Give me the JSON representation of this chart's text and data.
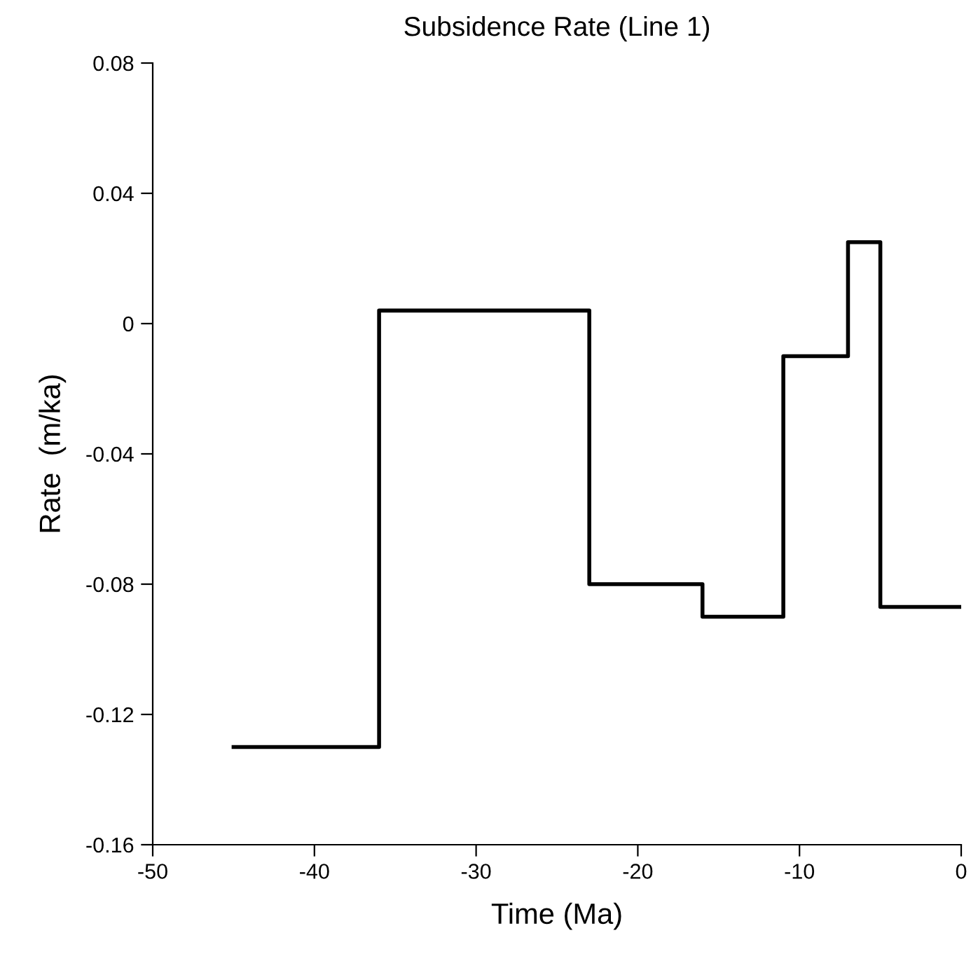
{
  "chart_data": {
    "type": "step",
    "title": "Subsidence Rate (Line 1)",
    "xlabel": "Time (Ma)",
    "ylabel": "Rate  (m/ka)",
    "x": [
      -45,
      -36,
      -23,
      -16,
      -11,
      -7,
      -5,
      0
    ],
    "series": [
      {
        "color": "#000000",
        "values": [
          -0.13,
          0.004,
          -0.08,
          -0.09,
          -0.01,
          0.025,
          -0.087,
          -0.087
        ]
      }
    ],
    "xlim": [
      -50,
      0
    ],
    "ylim": [
      -0.16,
      0.08
    ],
    "xticks": [
      {
        "value": -50,
        "label": "-50"
      },
      {
        "value": -40,
        "label": "-40"
      },
      {
        "value": -30,
        "label": "-30"
      },
      {
        "value": -20,
        "label": "-20"
      },
      {
        "value": -10,
        "label": "-10"
      },
      0
    ],
    "yticks": [
      {
        "value": -0.16,
        "label": "-0.16"
      },
      {
        "value": -0.12,
        "label": "-0.12"
      },
      {
        "value": -0.08,
        "label": "-0.08"
      },
      {
        "value": -0.04,
        "label": "-0.04"
      },
      0,
      0.04,
      0.08
    ],
    "grid": false,
    "line_style": "solid",
    "marker": "none"
  }
}
